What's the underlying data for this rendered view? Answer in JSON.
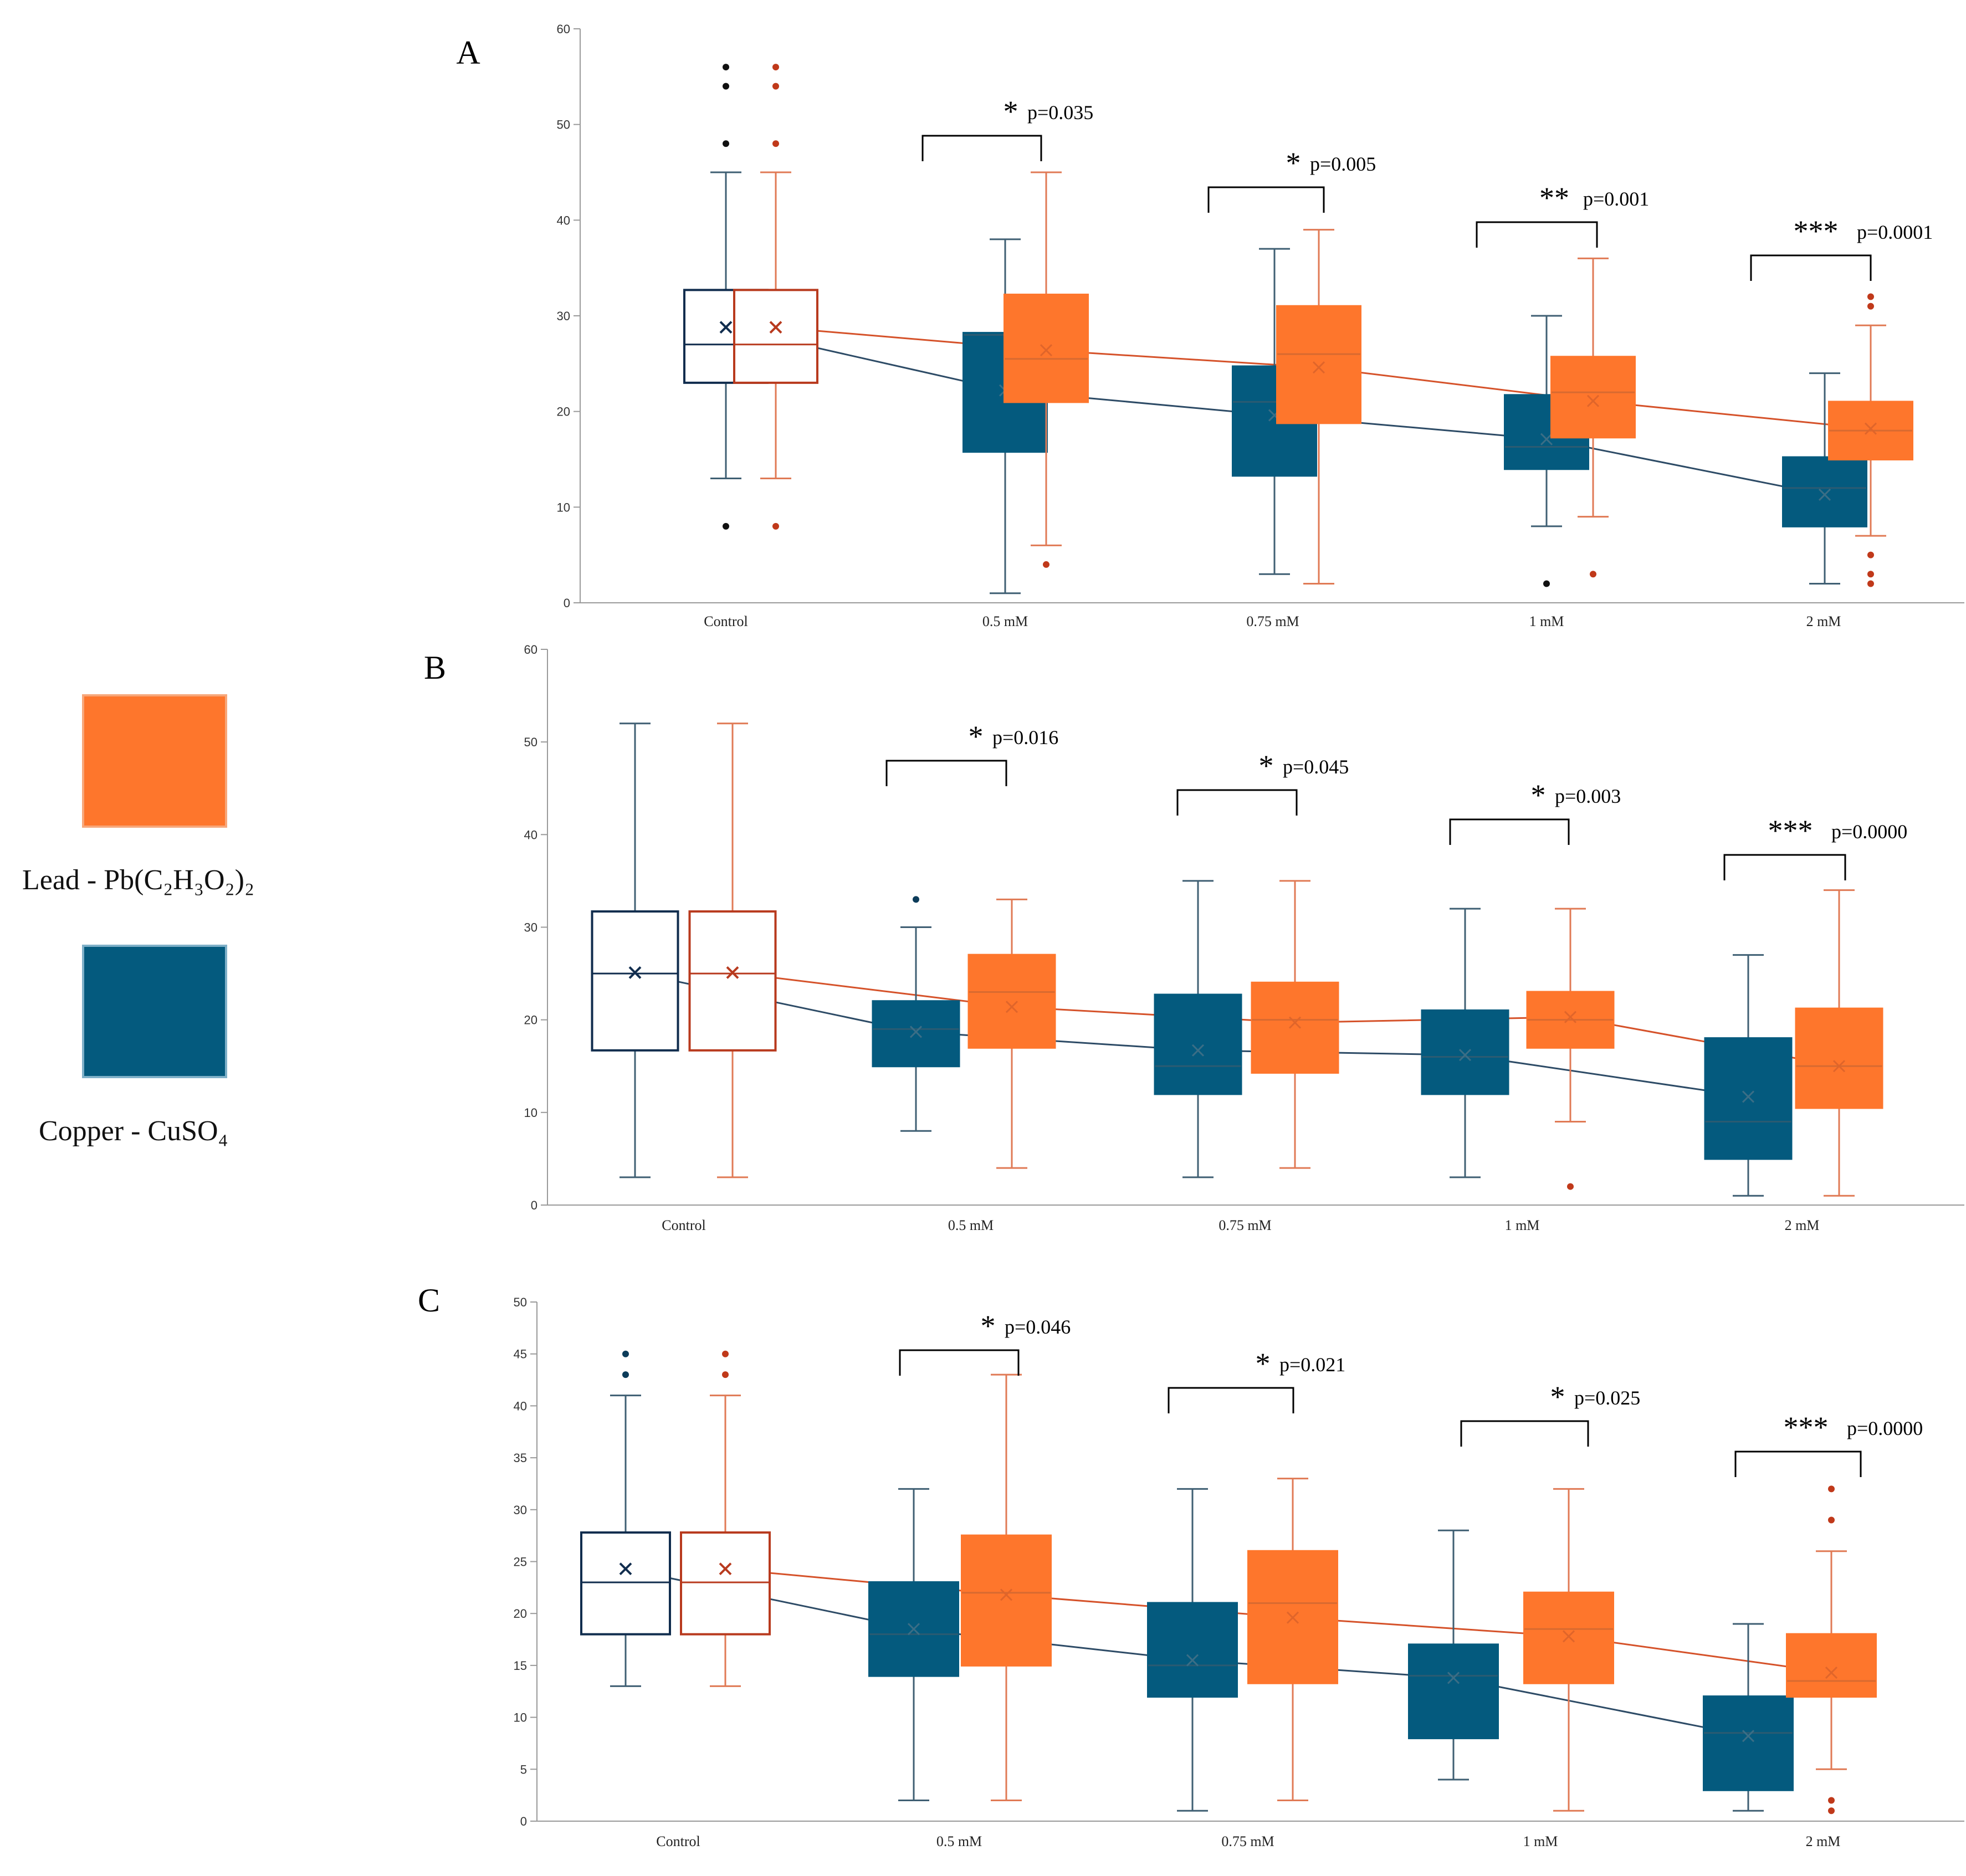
{
  "colors": {
    "copper": "#045a7e",
    "lead": "#fe762c",
    "copper_line": "#2d4b66",
    "lead_line": "#d5522a",
    "control_copper_edge": "#112d4e",
    "control_lead_edge": "#b83a1e",
    "axis": "#9a9a9a"
  },
  "legend": {
    "lead_label": "Lead - Pb(C₂H₃O₂)₂",
    "copper_label": "Copper - CuSO₄"
  },
  "chart_data": [
    {
      "panel": "A",
      "type": "box",
      "categories": [
        "Control",
        "0.5 mM",
        "0.75 mM",
        "1 mM",
        "2 mM"
      ],
      "ylim": [
        0,
        60
      ],
      "yticks": [
        "0",
        "10",
        "20",
        "30",
        "40",
        "50",
        "60"
      ],
      "series": [
        {
          "name": "Copper - CuSO₄",
          "boxes": [
            {
              "whislo": 13,
              "q1": 23,
              "med": 27,
              "q3": 32.7,
              "whishi": 45,
              "mean": 28.8,
              "fliers": [
                8,
                48,
                54,
                56
              ]
            },
            {
              "whislo": 1,
              "q1": 15.8,
              "med": 28,
              "q3": 28.2,
              "whishi": 38,
              "mean": 22.2,
              "fliers": []
            },
            {
              "whislo": 3,
              "q1": 13.3,
              "med": 21,
              "q3": 24.7,
              "whishi": 37,
              "mean": 19.6,
              "fliers": []
            },
            {
              "whislo": 8,
              "q1": 14,
              "med": 16.3,
              "q3": 21.7,
              "whishi": 30,
              "mean": 17.1,
              "fliers": [
                2
              ]
            },
            {
              "whislo": 2,
              "q1": 8,
              "med": 12,
              "q3": 15.2,
              "whishi": 24,
              "mean": 11.3,
              "fliers": []
            }
          ]
        },
        {
          "name": "Lead - Pb(C₂H₃O₂)₂",
          "boxes": [
            {
              "whislo": 13,
              "q1": 23,
              "med": 27,
              "q3": 32.7,
              "whishi": 45,
              "mean": 28.8,
              "fliers": [
                8,
                48,
                54,
                56
              ]
            },
            {
              "whislo": 6,
              "q1": 21,
              "med": 25.5,
              "q3": 32.2,
              "whishi": 45,
              "mean": 26.4,
              "fliers": [
                4
              ]
            },
            {
              "whislo": 2,
              "q1": 18.8,
              "med": 26,
              "q3": 31,
              "whishi": 39,
              "mean": 24.6,
              "fliers": []
            },
            {
              "whislo": 9,
              "q1": 17.3,
              "med": 22,
              "q3": 25.7,
              "whishi": 36,
              "mean": 21.1,
              "fliers": [
                3
              ]
            },
            {
              "whislo": 7,
              "q1": 15,
              "med": 18,
              "q3": 21,
              "whishi": 29,
              "mean": 18.2,
              "fliers": [
                2,
                3,
                5,
                31,
                32
              ]
            }
          ]
        }
      ],
      "significance": [
        {
          "stars": "*",
          "p": "p=0.035"
        },
        {
          "stars": "*",
          "p": "p=0.005"
        },
        {
          "stars": "**",
          "p": "p=0.001"
        },
        {
          "stars": "***",
          "p": "p=0.0001"
        }
      ]
    },
    {
      "panel": "B",
      "type": "box",
      "categories": [
        "Control",
        "0.5 mM",
        "0.75 mM",
        "1 mM",
        "2 mM"
      ],
      "ylim": [
        0,
        60
      ],
      "yticks": [
        "0",
        "10",
        "20",
        "30",
        "40",
        "50",
        "60"
      ],
      "series": [
        {
          "name": "Copper - CuSO₄",
          "boxes": [
            {
              "whislo": 3,
              "q1": 16.7,
              "med": 25,
              "q3": 31.7,
              "whishi": 52,
              "mean": 25.1,
              "fliers": []
            },
            {
              "whislo": 8,
              "q1": 15,
              "med": 19,
              "q3": 22,
              "whishi": 30,
              "mean": 18.7,
              "fliers": [
                33
              ]
            },
            {
              "whislo": 3,
              "q1": 12,
              "med": 15,
              "q3": 22.7,
              "whishi": 35,
              "mean": 16.7,
              "fliers": []
            },
            {
              "whislo": 3,
              "q1": 12,
              "med": 16,
              "q3": 21,
              "whishi": 32,
              "mean": 16.2,
              "fliers": []
            },
            {
              "whislo": 1,
              "q1": 5,
              "med": 9,
              "q3": 18,
              "whishi": 27,
              "mean": 11.7,
              "fliers": []
            }
          ]
        },
        {
          "name": "Lead - Pb(C₂H₃O₂)₂",
          "boxes": [
            {
              "whislo": 3,
              "q1": 16.7,
              "med": 25,
              "q3": 31.7,
              "whishi": 52,
              "mean": 25.1,
              "fliers": []
            },
            {
              "whislo": 4,
              "q1": 17,
              "med": 23,
              "q3": 27,
              "whishi": 33,
              "mean": 21.4,
              "fliers": []
            },
            {
              "whislo": 4,
              "q1": 14.3,
              "med": 20,
              "q3": 24,
              "whishi": 35,
              "mean": 19.7,
              "fliers": []
            },
            {
              "whislo": 9,
              "q1": 17,
              "med": 20,
              "q3": 23,
              "whishi": 32,
              "mean": 20.3,
              "fliers": [
                2
              ]
            },
            {
              "whislo": 1,
              "q1": 10.5,
              "med": 15,
              "q3": 21.2,
              "whishi": 34,
              "mean": 15,
              "fliers": []
            }
          ]
        }
      ],
      "significance": [
        {
          "stars": "*",
          "p": "p=0.016"
        },
        {
          "stars": "*",
          "p": "p=0.045"
        },
        {
          "stars": "*",
          "p": "p=0.003"
        },
        {
          "stars": "***",
          "p": "p=0.0000"
        }
      ]
    },
    {
      "panel": "C",
      "type": "box",
      "categories": [
        "Control",
        "0.5 mM",
        "0.75 mM",
        "1 mM",
        "2 mM"
      ],
      "ylim": [
        0,
        50
      ],
      "yticks": [
        "0",
        "5",
        "10",
        "15",
        "20",
        "25",
        "30",
        "35",
        "40",
        "45",
        "50"
      ],
      "series": [
        {
          "name": "Copper - CuSO₄",
          "boxes": [
            {
              "whislo": 13,
              "q1": 18,
              "med": 23,
              "q3": 27.8,
              "whishi": 41,
              "mean": 24.3,
              "fliers": [
                43,
                45
              ]
            },
            {
              "whislo": 2,
              "q1": 14,
              "med": 18,
              "q3": 23,
              "whishi": 32,
              "mean": 18.5,
              "fliers": []
            },
            {
              "whislo": 1,
              "q1": 12,
              "med": 15,
              "q3": 21,
              "whishi": 32,
              "mean": 15.5,
              "fliers": []
            },
            {
              "whislo": 4,
              "q1": 8,
              "med": 14,
              "q3": 17,
              "whishi": 28,
              "mean": 13.8,
              "fliers": []
            },
            {
              "whislo": 1,
              "q1": 3,
              "med": 8.5,
              "q3": 12,
              "whishi": 19,
              "mean": 8.2,
              "fliers": []
            }
          ]
        },
        {
          "name": "Lead - Pb(C₂H₃O₂)₂",
          "boxes": [
            {
              "whislo": 13,
              "q1": 18,
              "med": 23,
              "q3": 27.8,
              "whishi": 41,
              "mean": 24.3,
              "fliers": [
                43,
                45
              ]
            },
            {
              "whislo": 2,
              "q1": 15,
              "med": 22,
              "q3": 27.5,
              "whishi": 43,
              "mean": 21.8,
              "fliers": []
            },
            {
              "whislo": 2,
              "q1": 13.3,
              "med": 21,
              "q3": 26,
              "whishi": 33,
              "mean": 19.6,
              "fliers": []
            },
            {
              "whislo": 1,
              "q1": 13.3,
              "med": 18.5,
              "q3": 22,
              "whishi": 32,
              "mean": 17.8,
              "fliers": []
            },
            {
              "whislo": 5,
              "q1": 12,
              "med": 13.5,
              "q3": 18,
              "whishi": 26,
              "mean": 14.3,
              "fliers": [
                1,
                2,
                29,
                32
              ]
            }
          ]
        }
      ],
      "significance": [
        {
          "stars": "*",
          "p": "p=0.046"
        },
        {
          "stars": "*",
          "p": "p=0.021"
        },
        {
          "stars": "*",
          "p": "p=0.025"
        },
        {
          "stars": "***",
          "p": "p=0.0000"
        }
      ]
    }
  ]
}
